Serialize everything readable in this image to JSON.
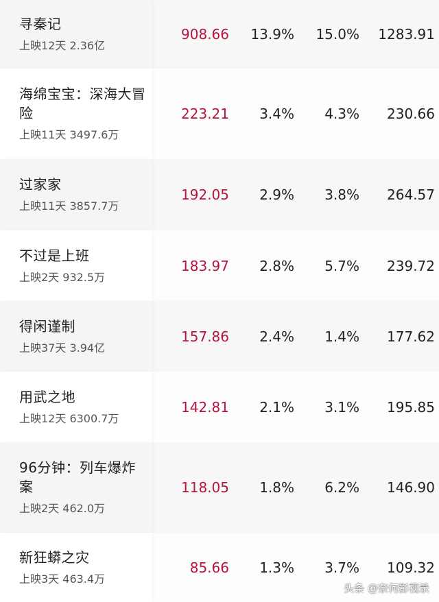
{
  "colors": {
    "highlight": "#b5163e",
    "text": "#222222"
  },
  "rows": [
    {
      "title": "寻秦记",
      "sub": "上映12天  2.36亿",
      "v1": "908.66",
      "v2": "13.9%",
      "v3": "15.0%",
      "v4": "1283.91"
    },
    {
      "title": "海绵宝宝：深海大冒险",
      "sub": "上映11天  3497.6万",
      "v1": "223.21",
      "v2": "3.4%",
      "v3": "4.3%",
      "v4": "230.66"
    },
    {
      "title": "过家家",
      "sub": "上映11天  3857.7万",
      "v1": "192.05",
      "v2": "2.9%",
      "v3": "3.8%",
      "v4": "264.57"
    },
    {
      "title": "不过是上班",
      "sub": "上映2天  932.5万",
      "v1": "183.97",
      "v2": "2.8%",
      "v3": "5.7%",
      "v4": "239.72"
    },
    {
      "title": "得闲谨制",
      "sub": "上映37天  3.94亿",
      "v1": "157.86",
      "v2": "2.4%",
      "v3": "1.4%",
      "v4": "177.62"
    },
    {
      "title": "用武之地",
      "sub": "上映12天  6300.7万",
      "v1": "142.81",
      "v2": "2.1%",
      "v3": "3.1%",
      "v4": "195.85"
    },
    {
      "title": "96分钟：列车爆炸案",
      "sub": "上映2天  462.0万",
      "v1": "118.05",
      "v2": "1.8%",
      "v3": "6.2%",
      "v4": "146.90"
    },
    {
      "title": "新狂蟒之灾",
      "sub": "上映3天  463.4万",
      "v1": "85.66",
      "v2": "1.3%",
      "v3": "3.7%",
      "v4": "109.32"
    }
  ],
  "watermark": "头条 @奈何影视录"
}
